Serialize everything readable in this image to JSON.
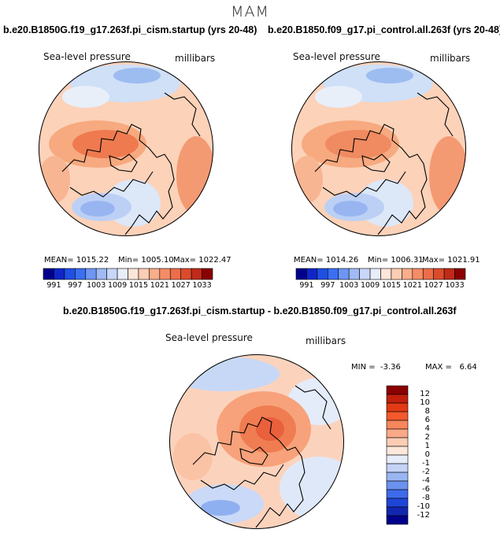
{
  "season": "MAM",
  "panels": [
    {
      "title": "b.e20.B1850G.f19_g17.263f.pi_cism.startup (yrs 20-48)",
      "variable": "Sea-level pressure",
      "units": "millibars",
      "mean_label": "MEAN=",
      "mean": "1015.22",
      "min_label": "Min=",
      "min": "1005.10",
      "max_label": "Max=",
      "max": "1022.47"
    },
    {
      "title": "b.e20.B1850.f09_g17.pi_control.all.263f (yrs 20-48)",
      "variable": "Sea-level pressure",
      "units": "millibars",
      "mean_label": "MEAN=",
      "mean": "1014.26",
      "min_label": "Min=",
      "min": "1006.31",
      "max_label": "Max=",
      "max": "1021.91"
    }
  ],
  "diff": {
    "title": "b.e20.B1850G.f19_g17.263f.pi_cism.startup - b.e20.B1850.f09_g17.pi_control.all.263f",
    "variable": "Sea-level pressure",
    "units": "millibars",
    "min_label": "MIN =",
    "min": "-3.36",
    "max_label": "MAX =",
    "max": "6.64"
  },
  "chart_data": [
    {
      "type": "heatmap",
      "projection": "north-polar-stereographic",
      "title": "b.e20.B1850G.f19_g17.263f.pi_cism.startup (yrs 20-48)",
      "variable": "Sea-level pressure",
      "units": "millibars",
      "stats": {
        "mean": 1015.22,
        "min": 1005.1,
        "max": 1022.47
      },
      "colorbar_ticks": [
        "991",
        "997",
        "1003",
        "1009",
        "1015",
        "1021",
        "1027",
        "1033"
      ],
      "colorbar_colors": [
        "#00008b",
        "#1025c8",
        "#1f4fe3",
        "#3a6ff0",
        "#6d96f2",
        "#9fbaf4",
        "#c8d6f7",
        "#e8eef9",
        "#fde6d9",
        "#fbcdb4",
        "#f9ad8a",
        "#f48d66",
        "#ec6d48",
        "#dc4a2c",
        "#c02a18",
        "#8b0000"
      ]
    },
    {
      "type": "heatmap",
      "projection": "north-polar-stereographic",
      "title": "b.e20.B1850.f09_g17.pi_control.all.263f (yrs 20-48)",
      "variable": "Sea-level pressure",
      "units": "millibars",
      "stats": {
        "mean": 1014.26,
        "min": 1006.31,
        "max": 1021.91
      },
      "colorbar_ticks": [
        "991",
        "997",
        "1003",
        "1009",
        "1015",
        "1021",
        "1027",
        "1033"
      ],
      "colorbar_colors": [
        "#00008b",
        "#1025c8",
        "#1f4fe3",
        "#3a6ff0",
        "#6d96f2",
        "#9fbaf4",
        "#c8d6f7",
        "#e8eef9",
        "#fde6d9",
        "#fbcdb4",
        "#f9ad8a",
        "#f48d66",
        "#ec6d48",
        "#dc4a2c",
        "#c02a18",
        "#8b0000"
      ]
    },
    {
      "type": "heatmap",
      "projection": "north-polar-stereographic",
      "title": "b.e20.B1850G.f19_g17.263f.pi_cism.startup - b.e20.B1850.f09_g17.pi_control.all.263f",
      "variable": "Sea-level pressure",
      "units": "millibars",
      "stats": {
        "min": -3.36,
        "max": 6.64
      },
      "colorbar_ticks": [
        "12",
        "10",
        "8",
        "6",
        "4",
        "2",
        "1",
        "0",
        "-1",
        "-2",
        "-4",
        "-6",
        "-8",
        "-10",
        "-12"
      ],
      "colorbar_colors": [
        "#8b0000",
        "#c2200d",
        "#e23a14",
        "#f3592c",
        "#f7875d",
        "#f9a986",
        "#fbcdb4",
        "#fde7da",
        "#e6edf9",
        "#c4d3f6",
        "#9ab6f2",
        "#6b92ef",
        "#3e6aec",
        "#1f45d8",
        "#1227b0",
        "#00008b"
      ]
    }
  ]
}
